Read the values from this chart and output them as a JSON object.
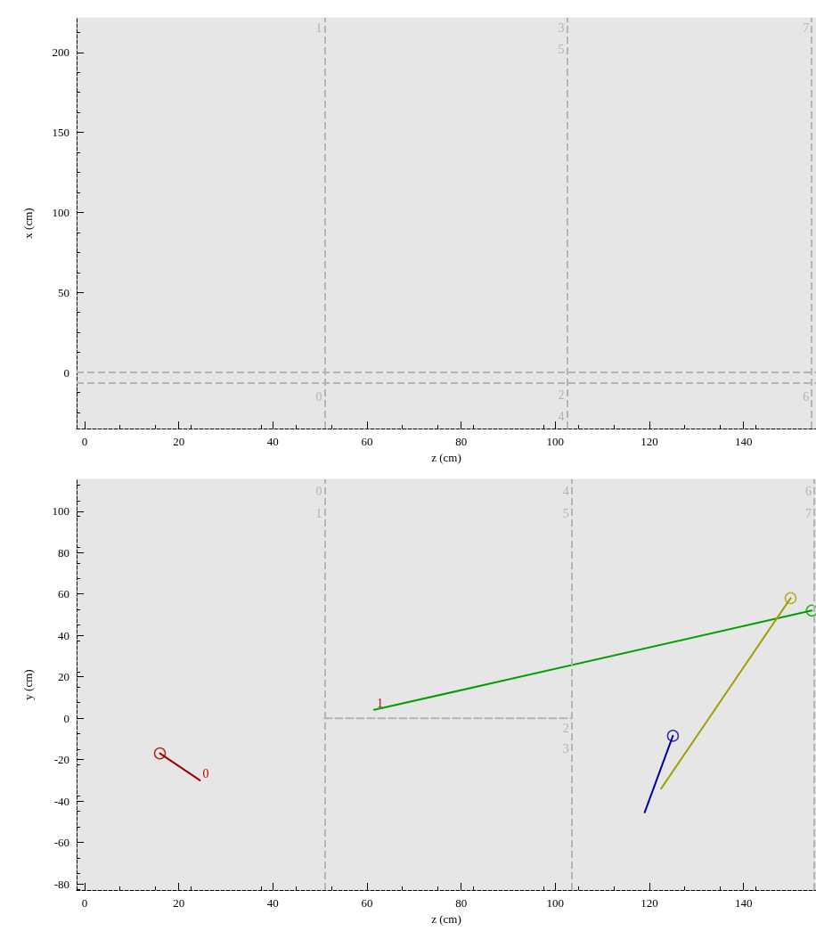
{
  "chart_data": [
    {
      "type": "line",
      "xlabel": "z (cm)",
      "ylabel": "x (cm)",
      "xlim": [
        -1.7,
        155.4
      ],
      "ylim": [
        -35,
        221.6
      ],
      "xticks": [
        0,
        20,
        40,
        60,
        80,
        100,
        120,
        140
      ],
      "yticks": [
        0,
        50,
        100,
        150,
        200
      ],
      "grid": false,
      "ref_lines": [
        {
          "axis": "x",
          "value": 51,
          "color": "#b4b4b4",
          "line_style": "dashed"
        },
        {
          "axis": "x",
          "value": 102.5,
          "color": "#b4b4b4",
          "line_style": "dashed"
        },
        {
          "axis": "y",
          "value": 0,
          "color": "#b4b4b4",
          "line_style": "dashed"
        },
        {
          "axis": "y",
          "value": -6.6,
          "color": "#b4b4b4",
          "line_style": "dashed"
        },
        {
          "axis": "x",
          "value": 154.5,
          "color": "#b4b4b4",
          "line_style": "dashed"
        }
      ],
      "annotations": [
        {
          "text": "1",
          "x": 51,
          "y": 215
        },
        {
          "text": "3",
          "x": 102.5,
          "y": 215
        },
        {
          "text": "5",
          "x": 102.5,
          "y": 201.6
        },
        {
          "text": "7",
          "x": 154.5,
          "y": 215
        },
        {
          "text": "0",
          "x": 51,
          "y": -15.5
        },
        {
          "text": "2",
          "x": 102.5,
          "y": -14.4
        },
        {
          "text": "4",
          "x": 102.5,
          "y": -27.7
        },
        {
          "text": "6",
          "x": 154.5,
          "y": -15.5
        }
      ]
    },
    {
      "type": "line",
      "xlabel": "z (cm)",
      "ylabel": "y (cm)",
      "xlim": [
        -1.7,
        155.4
      ],
      "ylim": [
        -83,
        115.4
      ],
      "xticks": [
        0,
        20,
        40,
        60,
        80,
        100,
        120,
        140
      ],
      "yticks": [
        -80,
        -60,
        -40,
        -20,
        0,
        20,
        40,
        60,
        80,
        100
      ],
      "grid": false,
      "series": [
        {
          "type": "line",
          "color": "#a00000",
          "x": [
            16,
            24.5
          ],
          "values": [
            -17,
            -30
          ],
          "marker": "none",
          "line_style": "solid"
        },
        {
          "type": "line",
          "color": "#00a000",
          "x": [
            61.5,
            154.5
          ],
          "values": [
            4,
            52
          ],
          "marker": "none",
          "line_style": "solid"
        },
        {
          "type": "line",
          "color": "#0000a0",
          "x": [
            125,
            119
          ],
          "values": [
            -8.5,
            -45.5
          ],
          "marker": "none",
          "line_style": "solid"
        },
        {
          "type": "line",
          "color": "#a0a000",
          "x": [
            150,
            122.5
          ],
          "values": [
            58,
            -34
          ],
          "marker": "none",
          "line_style": "solid"
        },
        {
          "type": "scatter",
          "color": "#a00000",
          "x": [
            16
          ],
          "values": [
            -17
          ],
          "marker": "circle"
        },
        {
          "type": "scatter",
          "color": "#00a000",
          "x": [
            154.5
          ],
          "values": [
            52
          ],
          "marker": "circle"
        },
        {
          "type": "scatter",
          "color": "#0000a0",
          "x": [
            125
          ],
          "values": [
            -8.5
          ],
          "marker": "circle"
        },
        {
          "type": "scatter",
          "color": "#a0a000",
          "x": [
            150
          ],
          "values": [
            58
          ],
          "marker": "circle"
        },
        {
          "type": "line",
          "color": "#b4b4b4",
          "x": [
            51,
            103.5
          ],
          "values": [
            0,
            0
          ],
          "marker": "none",
          "line_style": "dashed"
        }
      ],
      "ref_lines": [
        {
          "axis": "x",
          "value": 51,
          "color": "#b4b4b4",
          "line_style": "dashed"
        },
        {
          "axis": "x",
          "value": 103.5,
          "color": "#b4b4b4",
          "line_style": "dashed"
        },
        {
          "axis": "x",
          "value": 155,
          "color": "#b4b4b4",
          "line_style": "dashed"
        }
      ],
      "annotations": [
        {
          "text": "0",
          "x": 51,
          "y": 109.4
        },
        {
          "text": "1",
          "x": 51,
          "y": 99
        },
        {
          "text": "4",
          "x": 103.5,
          "y": 109.4
        },
        {
          "text": "5",
          "x": 103.5,
          "y": 99
        },
        {
          "text": "6",
          "x": 155,
          "y": 109.4
        },
        {
          "text": "7",
          "x": 155,
          "y": 99
        },
        {
          "text": "2",
          "x": 103.5,
          "y": -4.7
        },
        {
          "text": "3",
          "x": 103.5,
          "y": -14.6
        },
        {
          "text": "0",
          "x": 24.5,
          "y": -30
        },
        {
          "text": "1",
          "x": 61.5,
          "y": 4
        }
      ]
    }
  ]
}
